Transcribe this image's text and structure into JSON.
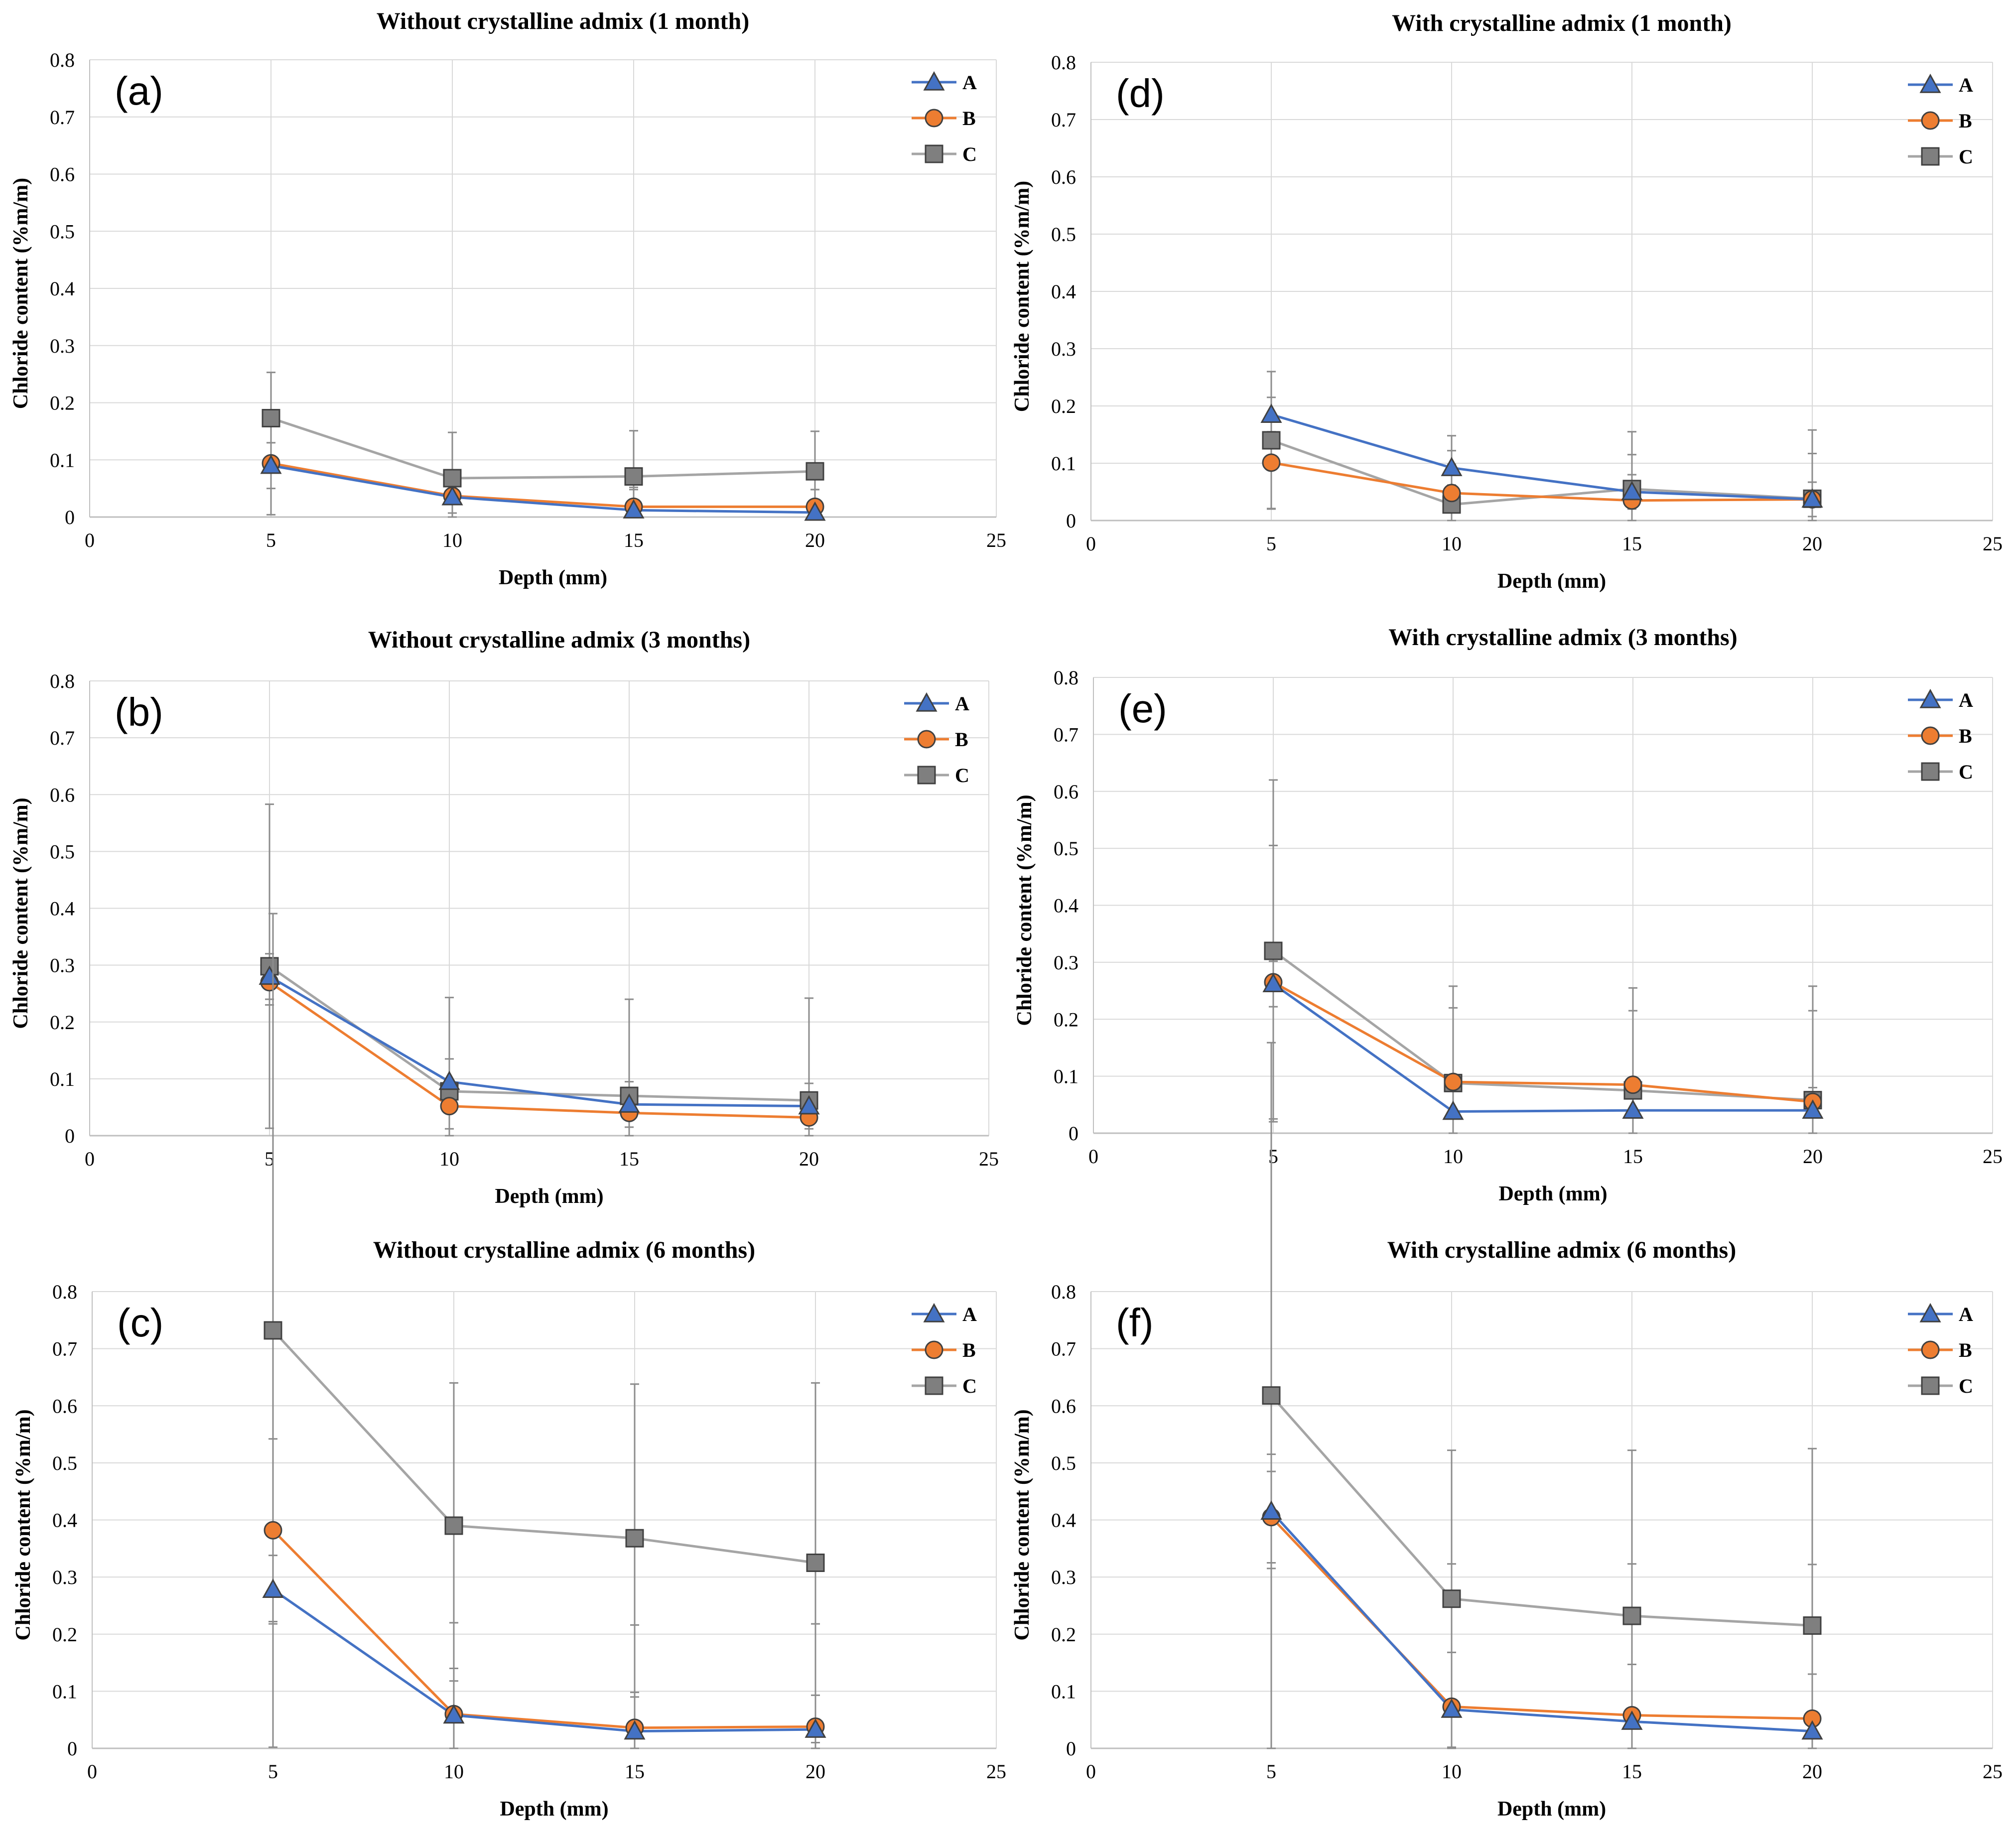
{
  "figure": {
    "y_axis_label": "Chloride content (%m/m)",
    "x_axis_label": "Depth (mm)"
  },
  "colors": {
    "A": "#4472C4",
    "B": "#ED7D31",
    "C_line": "#A5A5A5",
    "C_marker": "#7F7F7F",
    "grid": "#D9D9D9",
    "axis": "#BFBFBF",
    "errorbar": "#8C8C8C",
    "text": "#000000"
  },
  "chart_data": [
    {
      "id": "a",
      "panel_label": "(a)",
      "type": "line",
      "title": "Without crystalline admix (1 month)",
      "xlabel": "Depth (mm)",
      "ylabel": "Chloride content (%m/m)",
      "xlim": [
        0,
        25
      ],
      "ylim": [
        0,
        0.8
      ],
      "x_ticks": [
        "0",
        "5",
        "10",
        "15",
        "20",
        "25"
      ],
      "y_ticks": [
        "0",
        "0.1",
        "0.2",
        "0.3",
        "0.4",
        "0.5",
        "0.6",
        "0.7",
        "0.8"
      ],
      "legend": [
        "A",
        "B",
        "C"
      ],
      "x": [
        5,
        10,
        15,
        20
      ],
      "series": [
        {
          "name": "A",
          "values": [
            0.09,
            0.035,
            0.012,
            0.008
          ],
          "err": [
            0.04,
            0.04,
            0.04,
            0.04
          ]
        },
        {
          "name": "B",
          "values": [
            0.094,
            0.037,
            0.018,
            0.018
          ],
          "err": [
            0.09,
            0.03,
            0.03,
            0.03
          ]
        },
        {
          "name": "C",
          "values": [
            0.173,
            0.068,
            0.071,
            0.08
          ],
          "err": [
            0.08,
            0.08,
            0.08,
            0.07
          ]
        }
      ]
    },
    {
      "id": "d",
      "panel_label": "(d)",
      "type": "line",
      "title": "With crystalline admix (1 month)",
      "xlabel": "Depth (mm)",
      "ylabel": "Chloride content (%m/m)",
      "xlim": [
        0,
        25
      ],
      "ylim": [
        0,
        0.8
      ],
      "x_ticks": [
        "0",
        "5",
        "10",
        "15",
        "20",
        "25"
      ],
      "y_ticks": [
        "0",
        "0.1",
        "0.2",
        "0.3",
        "0.4",
        "0.5",
        "0.6",
        "0.7",
        "0.8"
      ],
      "legend": [
        "A",
        "B",
        "C"
      ],
      "x": [
        5,
        10,
        15,
        20
      ],
      "series": [
        {
          "name": "A",
          "values": [
            0.185,
            0.092,
            0.05,
            0.037
          ],
          "err": [
            0.03,
            0.03,
            0.03,
            0.03
          ]
        },
        {
          "name": "B",
          "values": [
            0.101,
            0.048,
            0.035,
            0.037
          ],
          "err": [
            0.08,
            0.05,
            0.08,
            0.08
          ]
        },
        {
          "name": "C",
          "values": [
            0.14,
            0.028,
            0.055,
            0.038
          ],
          "err": [
            0.12,
            0.12,
            0.1,
            0.12
          ]
        }
      ]
    },
    {
      "id": "b",
      "panel_label": "(b)",
      "type": "line",
      "title": "Without crystalline admix (3 months)",
      "xlabel": "Depth (mm)",
      "ylabel": "Chloride content (%m/m)",
      "xlim": [
        0,
        25
      ],
      "ylim": [
        0,
        0.8
      ],
      "x_ticks": [
        "0",
        "5",
        "10",
        "15",
        "20",
        "25"
      ],
      "y_ticks": [
        "0",
        "0.1",
        "0.2",
        "0.3",
        "0.4",
        "0.5",
        "0.6",
        "0.7",
        "0.8"
      ],
      "legend": [
        "A",
        "B",
        "C"
      ],
      "x": [
        5,
        10,
        15,
        20
      ],
      "series": [
        {
          "name": "A",
          "values": [
            0.28,
            0.095,
            0.055,
            0.052
          ],
          "err": [
            0.04,
            0.04,
            0.04,
            0.04
          ]
        },
        {
          "name": "B",
          "values": [
            0.27,
            0.052,
            0.04,
            0.032
          ],
          "err": [
            0.04,
            0.04,
            0.04,
            0.04
          ]
        },
        {
          "name": "C",
          "values": [
            0.298,
            0.078,
            0.07,
            0.062
          ],
          "err": [
            0.285,
            0.165,
            0.17,
            0.18
          ]
        }
      ]
    },
    {
      "id": "e",
      "panel_label": "(e)",
      "type": "line",
      "title": "With crystalline admix (3 months)",
      "xlabel": "Depth (mm)",
      "ylabel": "Chloride content (%m/m)",
      "xlim": [
        0,
        25
      ],
      "ylim": [
        0,
        0.8
      ],
      "x_ticks": [
        "0",
        "5",
        "10",
        "15",
        "20",
        "25"
      ],
      "y_ticks": [
        "0",
        "0.1",
        "0.2",
        "0.3",
        "0.4",
        "0.5",
        "0.6",
        "0.7",
        "0.8"
      ],
      "legend": [
        "A",
        "B",
        "C"
      ],
      "x": [
        5,
        10,
        15,
        20
      ],
      "series": [
        {
          "name": "A",
          "values": [
            0.262,
            0.038,
            0.04,
            0.04
          ],
          "err": [
            0.04,
            0.04,
            0.04,
            0.04
          ]
        },
        {
          "name": "B",
          "values": [
            0.265,
            0.09,
            0.085,
            0.055
          ],
          "err": [
            0.24,
            0.13,
            0.13,
            0.16
          ]
        },
        {
          "name": "C",
          "values": [
            0.32,
            0.088,
            0.075,
            0.058
          ],
          "err": [
            0.3,
            0.17,
            0.18,
            0.2
          ]
        }
      ]
    },
    {
      "id": "c",
      "panel_label": "(c)",
      "type": "line",
      "title": "Without crystalline admix (6 months)",
      "xlabel": "Depth (mm)",
      "ylabel": "Chloride content (%m/m)",
      "xlim": [
        0,
        25
      ],
      "ylim": [
        0,
        0.8
      ],
      "x_ticks": [
        "0",
        "5",
        "10",
        "15",
        "20",
        "25"
      ],
      "y_ticks": [
        "0",
        "0.1",
        "0.2",
        "0.3",
        "0.4",
        "0.5",
        "0.6",
        "0.7",
        "0.8"
      ],
      "legend": [
        "A",
        "B",
        "C"
      ],
      "x": [
        5,
        10,
        15,
        20
      ],
      "series": [
        {
          "name": "A",
          "values": [
            0.278,
            0.058,
            0.03,
            0.033
          ],
          "err": [
            0.06,
            0.06,
            0.06,
            0.06
          ]
        },
        {
          "name": "B",
          "values": [
            0.382,
            0.06,
            0.036,
            0.038
          ],
          "err": [
            0.16,
            0.16,
            0.18,
            0.18
          ]
        },
        {
          "name": "C",
          "values": [
            0.732,
            0.39,
            0.368,
            0.325
          ],
          "err": [
            0.73,
            0.25,
            0.27,
            0.315
          ]
        }
      ]
    },
    {
      "id": "f",
      "panel_label": "(f)",
      "type": "line",
      "title": "With crystalline admix (6 months)",
      "xlabel": "Depth (mm)",
      "ylabel": "Chloride content (%m/m)",
      "xlim": [
        0,
        25
      ],
      "ylim": [
        0,
        0.8
      ],
      "x_ticks": [
        "0",
        "5",
        "10",
        "15",
        "20",
        "25"
      ],
      "y_ticks": [
        "0",
        "0.1",
        "0.2",
        "0.3",
        "0.4",
        "0.5",
        "0.6",
        "0.7",
        "0.8"
      ],
      "legend": [
        "A",
        "B",
        "C"
      ],
      "x": [
        5,
        10,
        15,
        20
      ],
      "series": [
        {
          "name": "A",
          "values": [
            0.415,
            0.068,
            0.047,
            0.03
          ],
          "err": [
            0.1,
            0.1,
            0.1,
            0.1
          ]
        },
        {
          "name": "B",
          "values": [
            0.405,
            0.073,
            0.058,
            0.052
          ],
          "err": [
            0.08,
            0.25,
            0.265,
            0.27
          ]
        },
        {
          "name": "C",
          "values": [
            0.618,
            0.262,
            0.232,
            0.215
          ],
          "err": [
            0.618,
            0.26,
            0.29,
            0.31
          ]
        }
      ]
    }
  ]
}
